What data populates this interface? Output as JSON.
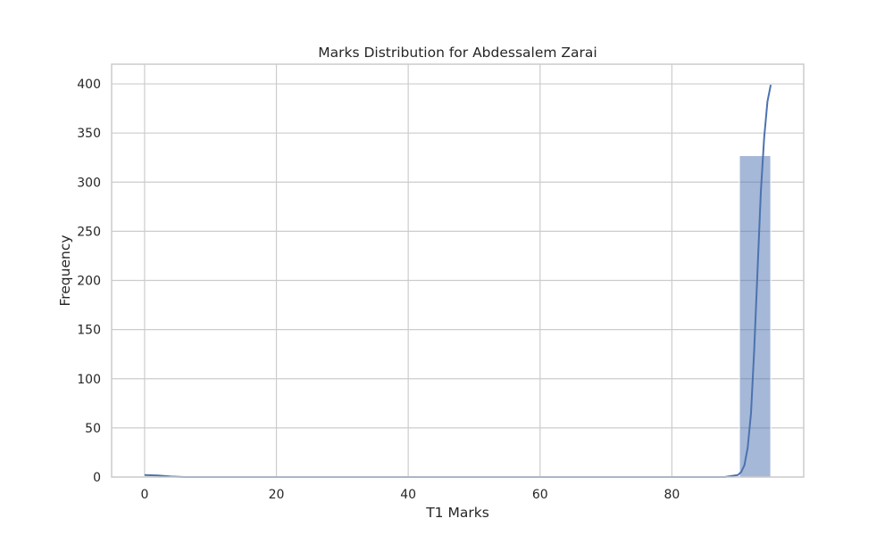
{
  "chart_data": {
    "type": "bar",
    "title": "Marks Distribution for Abdessalem Zarai",
    "xlabel": "T1 Marks",
    "ylabel": "Frequency",
    "xlim": [
      -5,
      100
    ],
    "ylim": [
      0,
      420
    ],
    "xticks": [
      0,
      20,
      40,
      60,
      80
    ],
    "yticks": [
      0,
      50,
      100,
      150,
      200,
      250,
      300,
      350,
      400
    ],
    "grid": true,
    "bins": [
      {
        "x0": 0.0,
        "x1": 4.75,
        "count": 1
      },
      {
        "x0": 4.75,
        "x1": 9.5,
        "count": 0
      },
      {
        "x0": 9.5,
        "x1": 14.25,
        "count": 0
      },
      {
        "x0": 14.25,
        "x1": 19.0,
        "count": 0
      },
      {
        "x0": 19.0,
        "x1": 23.75,
        "count": 0
      },
      {
        "x0": 23.75,
        "x1": 28.5,
        "count": 0
      },
      {
        "x0": 28.5,
        "x1": 33.25,
        "count": 0
      },
      {
        "x0": 33.25,
        "x1": 38.0,
        "count": 0
      },
      {
        "x0": 38.0,
        "x1": 42.75,
        "count": 0
      },
      {
        "x0": 42.75,
        "x1": 47.5,
        "count": 0
      },
      {
        "x0": 47.5,
        "x1": 52.25,
        "count": 0
      },
      {
        "x0": 52.25,
        "x1": 57.0,
        "count": 0
      },
      {
        "x0": 57.0,
        "x1": 61.75,
        "count": 0
      },
      {
        "x0": 61.75,
        "x1": 66.5,
        "count": 0
      },
      {
        "x0": 66.5,
        "x1": 71.25,
        "count": 0
      },
      {
        "x0": 71.25,
        "x1": 76.0,
        "count": 0
      },
      {
        "x0": 76.0,
        "x1": 80.75,
        "count": 0
      },
      {
        "x0": 80.75,
        "x1": 85.5,
        "count": 0
      },
      {
        "x0": 85.5,
        "x1": 90.25,
        "count": 0
      },
      {
        "x0": 90.25,
        "x1": 95.0,
        "count": 327
      }
    ],
    "kde": {
      "x": [
        0,
        2,
        4,
        6,
        10,
        20,
        40,
        60,
        80,
        88,
        90,
        90.5,
        91,
        91.5,
        92,
        92.5,
        93,
        93.5,
        94,
        94.5,
        95
      ],
      "y": [
        2,
        1.5,
        0.5,
        0,
        0,
        0,
        0,
        0,
        0,
        0,
        2,
        5,
        12,
        30,
        65,
        130,
        210,
        290,
        345,
        382,
        399
      ]
    },
    "colors": {
      "bar_fill": "#4c72b0",
      "bar_opacity": 0.5,
      "line": "#4c72b0",
      "grid": "#cccccc",
      "spine": "#cccccc",
      "text": "#262626"
    }
  }
}
